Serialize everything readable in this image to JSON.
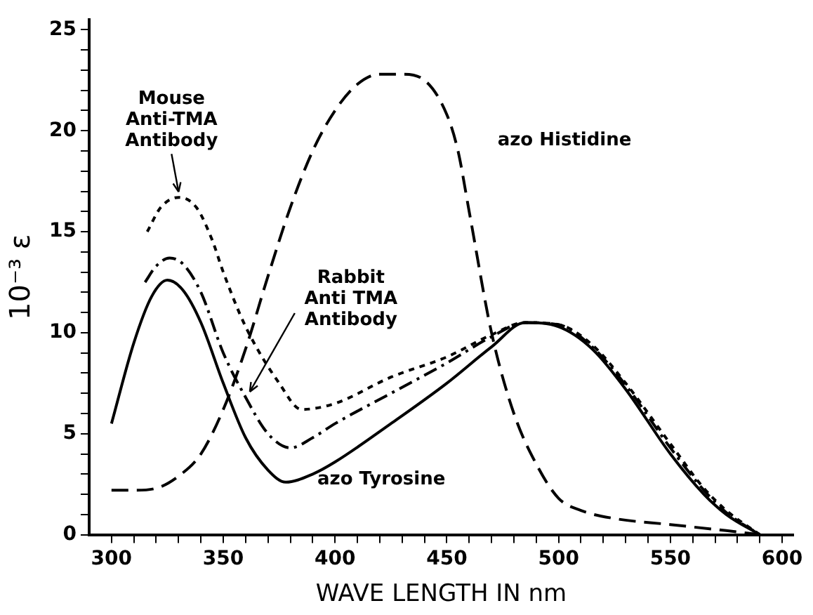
{
  "chart_data": {
    "type": "line",
    "xlabel": "WAVE LENGTH IN nm",
    "ylabel": "10⁻³ ε",
    "xlim": [
      290,
      605
    ],
    "ylim": [
      0,
      25.5
    ],
    "xticks": [
      300,
      {
        "value": 310,
        "label": null
      },
      {
        "value": 320,
        "label": null
      },
      {
        "value": 330,
        "label": null
      },
      {
        "value": 340,
        "label": null
      },
      350,
      {
        "value": 360,
        "label": null
      },
      {
        "value": 370,
        "label": null
      },
      {
        "value": 380,
        "label": null
      },
      {
        "value": 390,
        "label": null
      },
      400,
      {
        "value": 410,
        "label": null
      },
      {
        "value": 420,
        "label": null
      },
      {
        "value": 430,
        "label": null
      },
      {
        "value": 440,
        "label": null
      },
      450,
      {
        "value": 460,
        "label": null
      },
      {
        "value": 470,
        "label": null
      },
      {
        "value": 480,
        "label": null
      },
      {
        "value": 490,
        "label": null
      },
      500,
      {
        "value": 510,
        "label": null
      },
      {
        "value": 520,
        "label": null
      },
      {
        "value": 530,
        "label": null
      },
      {
        "value": 540,
        "label": null
      },
      550,
      {
        "value": 560,
        "label": null
      },
      {
        "value": 570,
        "label": null
      },
      {
        "value": 580,
        "label": null
      },
      {
        "value": 590,
        "label": null
      },
      600
    ],
    "yticks": [
      0,
      {
        "value": 1,
        "label": null
      },
      {
        "value": 2,
        "label": null
      },
      {
        "value": 3,
        "label": null
      },
      {
        "value": 4,
        "label": null
      },
      5,
      {
        "value": 6,
        "label": null
      },
      {
        "value": 7,
        "label": null
      },
      {
        "value": 8,
        "label": null
      },
      {
        "value": 9,
        "label": null
      },
      10,
      {
        "value": 11,
        "label": null
      },
      {
        "value": 12,
        "label": null
      },
      {
        "value": 13,
        "label": null
      },
      {
        "value": 14,
        "label": null
      },
      15,
      {
        "value": 16,
        "label": null
      },
      {
        "value": 17,
        "label": null
      },
      {
        "value": 18,
        "label": null
      },
      {
        "value": 19,
        "label": null
      },
      20,
      {
        "value": 21,
        "label": null
      },
      {
        "value": 22,
        "label": null
      },
      {
        "value": 23,
        "label": null
      },
      {
        "value": 24,
        "label": null
      },
      25
    ],
    "grid": false,
    "legend": false,
    "marker": "none",
    "series": [
      {
        "color": "#000000",
        "line_style": "solid",
        "x": [
          300,
          310,
          318,
          325,
          332,
          340,
          350,
          360,
          370,
          378,
          390,
          400,
          425,
          450,
          470,
          485,
          500,
          515,
          530,
          550,
          565,
          575,
          590
        ],
        "values": [
          5.5,
          9.5,
          11.8,
          12.6,
          12.1,
          10.5,
          7.5,
          4.8,
          3.2,
          2.6,
          3,
          3.6,
          5.5,
          7.5,
          9.3,
          10.5,
          10.3,
          9.2,
          7.2,
          4,
          2,
          1,
          0
        ]
      },
      {
        "color": "#000000",
        "line_style": "dashdot",
        "x": [
          315,
          320,
          326,
          332,
          340,
          350,
          360,
          370,
          380,
          390,
          400,
          425,
          450,
          470,
          485,
          500,
          515,
          530,
          550,
          565,
          575,
          590
        ],
        "values": [
          12.5,
          13.3,
          13.7,
          13.4,
          12,
          9,
          6.8,
          5,
          4.3,
          4.8,
          5.5,
          7,
          8.5,
          9.8,
          10.5,
          10.4,
          9.3,
          7.4,
          4.3,
          2.2,
          1.1,
          0
        ]
      },
      {
        "color": "#000000",
        "line_style": "dotted",
        "x": [
          316,
          322,
          330,
          338,
          345,
          350,
          360,
          375,
          385,
          400,
          425,
          450,
          470,
          485,
          500,
          515,
          530,
          550,
          565,
          575,
          590
        ],
        "values": [
          15,
          16.2,
          16.7,
          16.2,
          14.6,
          13,
          10.3,
          7.5,
          6.2,
          6.5,
          7.8,
          8.8,
          9.9,
          10.5,
          10.4,
          9.4,
          7.5,
          4.5,
          2.3,
          1.2,
          0
        ]
      },
      {
        "color": "#000000",
        "line_style": "dashed",
        "x": [
          300,
          310,
          320,
          330,
          340,
          350,
          360,
          370,
          380,
          390,
          400,
          410,
          420,
          430,
          440,
          450,
          455,
          460,
          470,
          480,
          490,
          500,
          510,
          525,
          550,
          575,
          590
        ],
        "values": [
          2.2,
          2.2,
          2.3,
          2.9,
          4,
          6.2,
          9.2,
          12.8,
          16.2,
          19,
          21,
          22.3,
          22.8,
          22.8,
          22.5,
          20.8,
          19,
          16,
          10,
          6,
          3.5,
          1.8,
          1.2,
          0.8,
          0.5,
          0.2,
          0
        ]
      }
    ],
    "annotations": [
      {
        "text": "Mouse\nAnti-TMA\nAntibody",
        "x": 330,
        "y": 16.7
      },
      {
        "text": "Rabbit\nAnti TMA\nAntibody",
        "x": 360,
        "y": 6.8
      },
      "azo Histidine",
      {
        "text": "azo Tyrosine",
        "x": 378,
        "y": 2.6
      }
    ]
  }
}
